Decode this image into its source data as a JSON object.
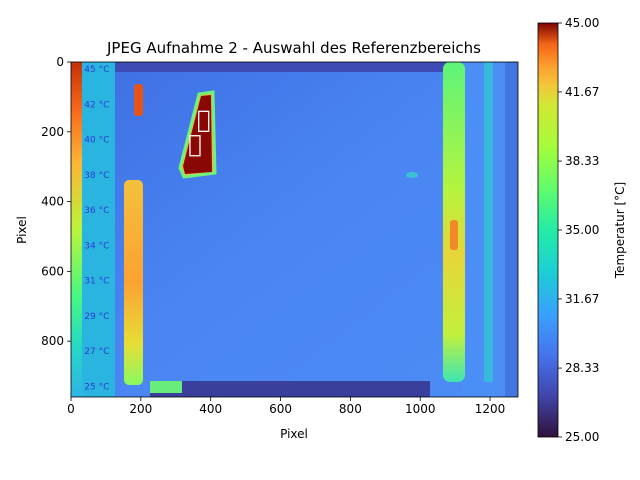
{
  "chart_data": {
    "type": "heatmap",
    "title": "JPEG Aufnahme 2 - Auswahl des Referenzbereichs",
    "xlabel": "Pixel",
    "ylabel": "Pixel",
    "xlim": [
      0,
      1280
    ],
    "ylim": [
      960,
      0
    ],
    "xticks": [
      "0",
      "200",
      "400",
      "600",
      "800",
      "1000",
      "1200"
    ],
    "yticks": [
      "0",
      "200",
      "400",
      "600",
      "800"
    ],
    "colorbar": {
      "label": "Temperatur [°C]",
      "range": [
        25.0,
        45.0
      ],
      "ticks": [
        "25.00",
        "28.33",
        "31.67",
        "35.00",
        "38.33",
        "41.67",
        "45.00"
      ],
      "colormap": "turbo"
    },
    "embedded_scale_labels": [
      "45 °C",
      "42 °C",
      "40 °C",
      "38 °C",
      "36 °C",
      "34 °C",
      "31 °C",
      "29 °C",
      "27 °C",
      "25 °C"
    ],
    "background_temperature_c": 29.5,
    "hot_region": {
      "center_x": 370,
      "center_y": 210,
      "temperature_c": 45.0
    },
    "reference_markers": [
      {
        "x": 380,
        "y": 170
      },
      {
        "x": 355,
        "y": 240
      }
    ]
  }
}
